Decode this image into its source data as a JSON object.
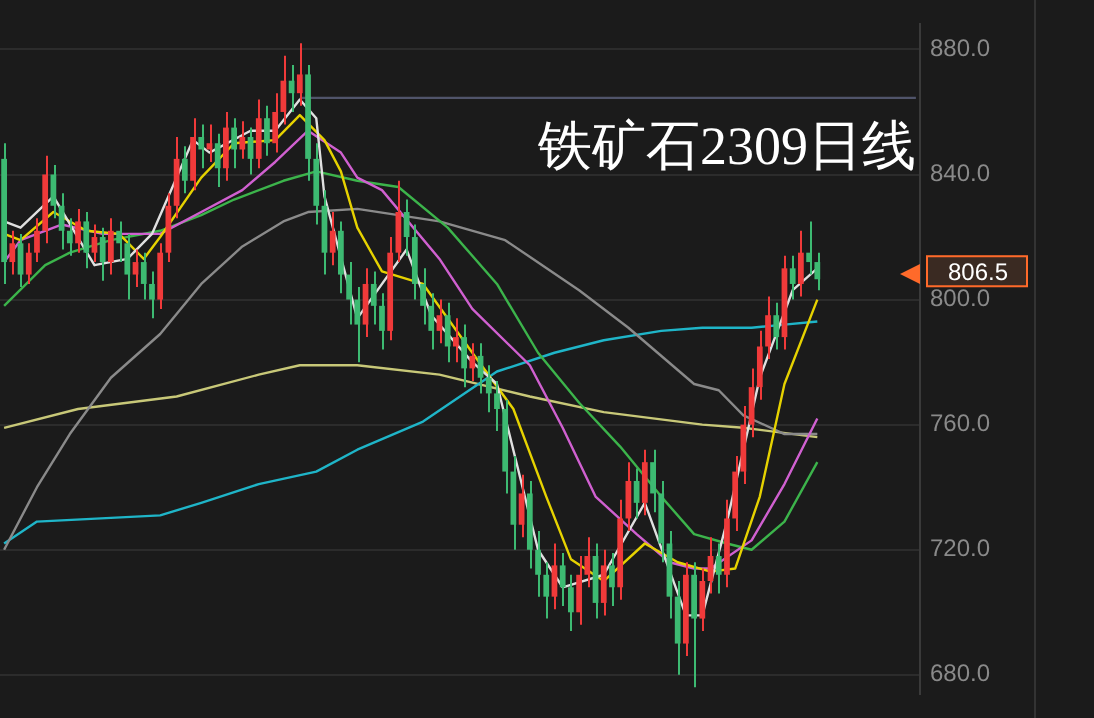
{
  "chart_data": {
    "type": "candlestick",
    "title": "铁矿石2309日线",
    "categories": [
      null,
      null,
      null,
      null,
      null,
      null,
      null,
      null,
      null,
      null,
      null,
      null,
      null,
      null,
      null,
      null,
      null,
      null,
      null,
      null,
      null,
      null,
      null,
      null,
      null,
      null,
      null,
      null,
      null,
      null,
      null,
      null,
      null,
      null,
      null,
      null,
      null,
      null,
      null,
      null,
      null,
      null,
      null,
      null,
      null,
      null,
      null,
      null,
      null,
      null,
      null,
      null,
      null,
      null,
      null,
      null,
      null,
      null,
      null,
      null,
      null,
      null,
      null,
      null,
      null,
      null,
      null,
      null,
      null,
      null,
      null,
      null,
      null,
      null,
      null,
      null,
      null,
      null,
      null,
      null,
      null,
      null,
      null,
      null,
      null,
      null,
      null,
      null,
      null,
      null,
      null,
      null,
      null,
      null,
      null,
      null,
      null,
      null,
      null,
      null,
      null,
      null,
      null,
      null,
      null,
      null,
      null,
      null,
      null,
      null,
      null,
      null
    ],
    "ohlc": [
      [
        845,
        850,
        805,
        812
      ],
      [
        812,
        822,
        808,
        818
      ],
      [
        818,
        821,
        804,
        808
      ],
      [
        808,
        818,
        805,
        815
      ],
      [
        815,
        826,
        812,
        822
      ],
      [
        822,
        846,
        818,
        840
      ],
      [
        840,
        843,
        826,
        830
      ],
      [
        830,
        834,
        816,
        822
      ],
      [
        822,
        826,
        814,
        818
      ],
      [
        818,
        829,
        815,
        825
      ],
      [
        825,
        828,
        810,
        815
      ],
      [
        815,
        824,
        812,
        820
      ],
      [
        820,
        823,
        806,
        812
      ],
      [
        812,
        826,
        808,
        822
      ],
      [
        822,
        825,
        812,
        818
      ],
      [
        818,
        821,
        800,
        808
      ],
      [
        808,
        816,
        804,
        812
      ],
      [
        812,
        815,
        800,
        805
      ],
      [
        805,
        809,
        794,
        800
      ],
      [
        800,
        818,
        797,
        815
      ],
      [
        815,
        834,
        812,
        830
      ],
      [
        830,
        852,
        826,
        845
      ],
      [
        845,
        849,
        834,
        838
      ],
      [
        838,
        858,
        835,
        852
      ],
      [
        852,
        856,
        842,
        848
      ],
      [
        848,
        856,
        844,
        850
      ],
      [
        850,
        853,
        836,
        842
      ],
      [
        842,
        860,
        838,
        855
      ],
      [
        855,
        858,
        842,
        848
      ],
      [
        848,
        857,
        845,
        852
      ],
      [
        852,
        855,
        840,
        845
      ],
      [
        845,
        864,
        842,
        858
      ],
      [
        858,
        862,
        846,
        850
      ],
      [
        850,
        866,
        847,
        860
      ],
      [
        860,
        878,
        856,
        870
      ],
      [
        870,
        875,
        860,
        866
      ],
      [
        866,
        882,
        862,
        872
      ],
      [
        872,
        875,
        838,
        845
      ],
      [
        845,
        850,
        824,
        830
      ],
      [
        830,
        835,
        808,
        815
      ],
      [
        815,
        828,
        811,
        822
      ],
      [
        822,
        825,
        802,
        808
      ],
      [
        808,
        812,
        792,
        800
      ],
      [
        800,
        804,
        780,
        792
      ],
      [
        792,
        810,
        788,
        805
      ],
      [
        805,
        809,
        792,
        798
      ],
      [
        798,
        802,
        784,
        790
      ],
      [
        790,
        820,
        787,
        815
      ],
      [
        815,
        838,
        812,
        828
      ],
      [
        828,
        832,
        814,
        820
      ],
      [
        820,
        824,
        800,
        805
      ],
      [
        805,
        810,
        792,
        798
      ],
      [
        798,
        802,
        784,
        790
      ],
      [
        790,
        800,
        786,
        795
      ],
      [
        795,
        799,
        780,
        785
      ],
      [
        785,
        794,
        780,
        788
      ],
      [
        788,
        792,
        772,
        778
      ],
      [
        778,
        786,
        774,
        782
      ],
      [
        782,
        786,
        770,
        775
      ],
      [
        775,
        779,
        764,
        770
      ],
      [
        770,
        774,
        758,
        765
      ],
      [
        765,
        768,
        738,
        745
      ],
      [
        745,
        750,
        720,
        728
      ],
      [
        728,
        744,
        724,
        738
      ],
      [
        738,
        742,
        714,
        720
      ],
      [
        720,
        726,
        705,
        712
      ],
      [
        712,
        716,
        698,
        705
      ],
      [
        705,
        722,
        701,
        715
      ],
      [
        715,
        719,
        702,
        708
      ],
      [
        708,
        712,
        694,
        700
      ],
      [
        700,
        718,
        696,
        712
      ],
      [
        712,
        724,
        708,
        718
      ],
      [
        718,
        722,
        698,
        703
      ],
      [
        703,
        720,
        699,
        715
      ],
      [
        715,
        719,
        702,
        708
      ],
      [
        708,
        736,
        704,
        730
      ],
      [
        730,
        748,
        726,
        742
      ],
      [
        742,
        746,
        730,
        735
      ],
      [
        735,
        752,
        731,
        748
      ],
      [
        748,
        752,
        732,
        738
      ],
      [
        738,
        742,
        716,
        722
      ],
      [
        722,
        726,
        698,
        705
      ],
      [
        705,
        710,
        680,
        690
      ],
      [
        690,
        716,
        686,
        712
      ],
      [
        712,
        716,
        676,
        698
      ],
      [
        698,
        714,
        694,
        710
      ],
      [
        710,
        724,
        706,
        718
      ],
      [
        718,
        722,
        706,
        712
      ],
      [
        712,
        736,
        708,
        730
      ],
      [
        730,
        750,
        726,
        745
      ],
      [
        745,
        766,
        741,
        760
      ],
      [
        760,
        778,
        756,
        772
      ],
      [
        772,
        790,
        768,
        785
      ],
      [
        785,
        801,
        781,
        795
      ],
      [
        795,
        799,
        784,
        788
      ],
      [
        788,
        814,
        784,
        810
      ],
      [
        810,
        814,
        800,
        805
      ],
      [
        805,
        822,
        801,
        815
      ],
      [
        815,
        825,
        808,
        812
      ],
      [
        812,
        815,
        803,
        806.5
      ],
      null,
      null,
      null,
      null,
      null,
      null,
      null,
      null,
      null,
      null,
      null,
      null
    ],
    "colors": [
      "#3dba72",
      "#f03a3a",
      "#3dba72",
      "#f03a3a",
      "#f03a3a",
      "#f03a3a",
      "#3dba72",
      "#3dba72",
      "#3dba72",
      "#f03a3a",
      "#3dba72",
      "#f03a3a",
      "#3dba72",
      "#f03a3a",
      "#3dba72",
      "#3dba72",
      "#f03a3a",
      "#3dba72",
      "#3dba72",
      "#f03a3a",
      "#f03a3a",
      "#f03a3a",
      "#3dba72",
      "#f03a3a",
      "#3dba72",
      "#f03a3a",
      "#3dba72",
      "#f03a3a",
      "#3dba72",
      "#f03a3a",
      "#3dba72",
      "#f03a3a",
      "#3dba72",
      "#f03a3a",
      "#f03a3a",
      "#3dba72",
      "#f03a3a",
      "#3dba72",
      "#3dba72",
      "#3dba72",
      "#f03a3a",
      "#3dba72",
      "#3dba72",
      "#3dba72",
      "#f03a3a",
      "#3dba72",
      "#3dba72",
      "#f03a3a",
      "#f03a3a",
      "#3dba72",
      "#3dba72",
      "#3dba72",
      "#3dba72",
      "#f03a3a",
      "#3dba72",
      "#f03a3a",
      "#3dba72",
      "#f03a3a",
      "#3dba72",
      "#3dba72",
      "#3dba72",
      "#3dba72",
      "#3dba72",
      "#f03a3a",
      "#3dba72",
      "#3dba72",
      "#3dba72",
      "#f03a3a",
      "#3dba72",
      "#3dba72",
      "#f03a3a",
      "#f03a3a",
      "#3dba72",
      "#f03a3a",
      "#3dba72",
      "#f03a3a",
      "#f03a3a",
      "#3dba72",
      "#f03a3a",
      "#3dba72",
      "#3dba72",
      "#3dba72",
      "#3dba72",
      "#f03a3a",
      "#3dba72",
      "#f03a3a",
      "#f03a3a",
      "#3dba72",
      "#f03a3a",
      "#f03a3a",
      "#f03a3a",
      "#f03a3a",
      "#f03a3a",
      "#f03a3a",
      "#3dba72",
      "#f03a3a",
      "#3dba72",
      "#f03a3a",
      "#3dba72",
      "#3dba72",
      null,
      null,
      null,
      null,
      null,
      null,
      null,
      null,
      null,
      null,
      null,
      null
    ],
    "series": [
      {
        "type": "line",
        "color": "#e0e0e0",
        "values": [
          825,
          null,
          823,
          null,
          null,
          null,
          833,
          null,
          null,
          null,
          null,
          811,
          null,
          null,
          null,
          813,
          null,
          null,
          821,
          null,
          null,
          null,
          null,
          851,
          null,
          847,
          null,
          null,
          null,
          null,
          854,
          null,
          null,
          854,
          null,
          null,
          864,
          null,
          858,
          833,
          null,
          null,
          null,
          794,
          null,
          null,
          null,
          null,
          null,
          816,
          null,
          null,
          795,
          null,
          null,
          null,
          null,
          780,
          null,
          null,
          773,
          null,
          null,
          null,
          null,
          720,
          null,
          null,
          708,
          null,
          null,
          null,
          null,
          712,
          null,
          null,
          null,
          null,
          735,
          null,
          null,
          null,
          null,
          699,
          null,
          699,
          null,
          null,
          729,
          null,
          null,
          null,
          775,
          null,
          null,
          null,
          803,
          null,
          null,
          810,
          null,
          null,
          null,
          null,
          null,
          null,
          null,
          null,
          null,
          null,
          null,
          null
        ]
      },
      {
        "type": "line",
        "color": "#e6d200",
        "values": [
          821,
          null,
          819,
          null,
          null,
          null,
          828,
          null,
          null,
          null,
          822,
          null,
          null,
          null,
          821,
          null,
          null,
          813,
          null,
          820,
          null,
          null,
          null,
          null,
          839,
          null,
          null,
          null,
          850,
          null,
          null,
          null,
          null,
          851,
          null,
          null,
          859,
          null,
          null,
          851,
          null,
          841,
          null,
          823,
          null,
          null,
          809,
          null,
          null,
          null,
          null,
          805,
          null,
          null,
          null,
          null,
          null,
          783,
          null,
          null,
          null,
          null,
          765,
          null,
          null,
          null,
          737,
          null,
          null,
          717,
          null,
          null,
          null,
          710,
          null,
          null,
          null,
          null,
          722,
          null,
          null,
          null,
          716,
          null,
          null,
          null,
          713,
          null,
          null,
          714,
          null,
          null,
          737,
          null,
          null,
          773,
          null,
          null,
          null,
          800,
          null,
          null,
          null,
          null,
          null,
          null,
          null,
          null,
          null,
          null,
          null,
          null
        ]
      },
      {
        "type": "line",
        "color": "#d060d0",
        "values": [
          812,
          null,
          819,
          null,
          null,
          null,
          null,
          824,
          null,
          null,
          null,
          null,
          821,
          null,
          null,
          null,
          null,
          null,
          null,
          821,
          null,
          null,
          null,
          null,
          828,
          null,
          null,
          null,
          null,
          835,
          null,
          null,
          null,
          844,
          null,
          null,
          null,
          854,
          null,
          null,
          null,
          847,
          null,
          839,
          null,
          null,
          835,
          null,
          null,
          null,
          null,
          null,
          null,
          813,
          null,
          null,
          null,
          797,
          null,
          null,
          null,
          null,
          null,
          null,
          779,
          null,
          null,
          null,
          759,
          null,
          null,
          null,
          737,
          null,
          null,
          null,
          null,
          725,
          null,
          null,
          null,
          716,
          null,
          null,
          714,
          null,
          714,
          null,
          null,
          null,
          null,
          723,
          null,
          null,
          null,
          741,
          null,
          null,
          null,
          762,
          null,
          null,
          null,
          null,
          null,
          null,
          null,
          null,
          null,
          null,
          null,
          null
        ]
      },
      {
        "type": "line",
        "color": "#3cb44b",
        "values": [
          798,
          null,
          null,
          null,
          null,
          811,
          null,
          null,
          815,
          null,
          null,
          null,
          null,
          819,
          null,
          null,
          null,
          null,
          null,
          822,
          null,
          null,
          null,
          null,
          827,
          null,
          null,
          null,
          832,
          null,
          null,
          null,
          null,
          null,
          838,
          null,
          null,
          null,
          841,
          null,
          null,
          null,
          null,
          838,
          null,
          null,
          null,
          null,
          836,
          null,
          null,
          null,
          null,
          null,
          823,
          null,
          null,
          null,
          null,
          null,
          805,
          null,
          null,
          null,
          null,
          783,
          null,
          null,
          null,
          null,
          767,
          null,
          null,
          null,
          null,
          753,
          null,
          null,
          null,
          null,
          737,
          null,
          null,
          null,
          725,
          null,
          null,
          null,
          722,
          null,
          null,
          720,
          null,
          null,
          null,
          729,
          null,
          null,
          null,
          748,
          null,
          null,
          null,
          null,
          null,
          null,
          null,
          null,
          null,
          null,
          null,
          null
        ]
      },
      {
        "type": "line",
        "color": "#8a8a8a",
        "values": [
          720,
          null,
          null,
          null,
          740,
          null,
          null,
          null,
          757,
          null,
          null,
          null,
          null,
          775,
          null,
          null,
          null,
          null,
          null,
          789,
          null,
          null,
          null,
          null,
          805,
          null,
          null,
          null,
          null,
          817,
          null,
          null,
          null,
          null,
          825,
          null,
          null,
          828,
          null,
          null,
          null,
          null,
          null,
          829,
          null,
          null,
          null,
          null,
          null,
          null,
          null,
          null,
          null,
          825,
          null,
          null,
          null,
          null,
          null,
          null,
          null,
          819,
          null,
          null,
          null,
          null,
          null,
          null,
          null,
          null,
          803,
          null,
          null,
          null,
          null,
          null,
          791,
          null,
          null,
          null,
          null,
          null,
          null,
          null,
          773,
          null,
          null,
          771,
          null,
          null,
          763,
          null,
          null,
          null,
          null,
          757,
          null,
          null,
          null,
          757,
          null,
          null,
          null,
          null,
          null,
          null,
          null,
          null,
          null,
          null,
          null,
          null
        ]
      },
      {
        "type": "line",
        "color": "#1fb5c8",
        "values": [
          722,
          null,
          null,
          null,
          729,
          null,
          null,
          null,
          null,
          null,
          null,
          null,
          null,
          null,
          null,
          null,
          null,
          null,
          null,
          731,
          null,
          null,
          null,
          null,
          735,
          null,
          null,
          null,
          null,
          null,
          null,
          741,
          null,
          null,
          null,
          null,
          null,
          null,
          745,
          null,
          null,
          null,
          null,
          752,
          null,
          null,
          null,
          null,
          null,
          null,
          null,
          761,
          null,
          null,
          null,
          null,
          null,
          null,
          null,
          null,
          777,
          null,
          null,
          null,
          null,
          null,
          null,
          783,
          null,
          null,
          null,
          null,
          null,
          787,
          null,
          null,
          null,
          null,
          null,
          null,
          790,
          null,
          null,
          null,
          null,
          791,
          null,
          null,
          null,
          null,
          null,
          791,
          null,
          null,
          null,
          792,
          null,
          null,
          null,
          793,
          null,
          null,
          null,
          null,
          null,
          null,
          null,
          null,
          null,
          null,
          null,
          null
        ]
      },
      {
        "type": "line",
        "color": "#c8c878",
        "values": [
          759,
          null,
          null,
          null,
          null,
          null,
          null,
          null,
          null,
          765,
          null,
          null,
          null,
          null,
          null,
          null,
          null,
          null,
          null,
          null,
          null,
          769,
          null,
          null,
          null,
          null,
          null,
          null,
          null,
          null,
          null,
          776,
          null,
          null,
          null,
          null,
          779,
          null,
          null,
          null,
          null,
          null,
          null,
          779,
          null,
          null,
          null,
          null,
          null,
          null,
          null,
          null,
          null,
          776,
          null,
          null,
          null,
          null,
          null,
          null,
          null,
          null,
          null,
          null,
          769,
          null,
          null,
          null,
          null,
          null,
          null,
          null,
          null,
          764,
          null,
          null,
          null,
          null,
          null,
          null,
          null,
          null,
          null,
          null,
          null,
          760,
          null,
          null,
          null,
          null,
          759,
          null,
          null,
          null,
          null,
          null,
          null,
          null,
          null,
          756,
          null,
          null,
          null,
          null,
          null,
          null,
          null,
          null,
          null,
          null,
          null,
          null
        ]
      },
      {
        "type": "line",
        "color": "#50546a",
        "values": [
          null,
          null,
          null,
          null,
          null,
          null,
          null,
          null,
          null,
          null,
          null,
          null,
          null,
          null,
          null,
          null,
          null,
          null,
          null,
          null,
          null,
          null,
          null,
          null,
          null,
          null,
          null,
          null,
          null,
          null,
          null,
          null,
          null,
          null,
          null,
          null,
          864.5,
          null,
          null,
          null,
          null,
          null,
          null,
          null,
          null,
          null,
          null,
          null,
          null,
          null,
          null,
          null,
          null,
          null,
          null,
          null,
          null,
          null,
          null,
          null,
          null,
          null,
          null,
          null,
          null,
          null,
          null,
          null,
          null,
          null,
          null,
          null,
          null,
          null,
          null,
          null,
          null,
          null,
          null,
          null,
          null,
          null,
          null,
          null,
          null,
          null,
          null,
          null,
          null,
          null,
          null,
          null,
          null,
          null,
          null,
          null,
          null,
          null,
          null,
          null,
          null,
          null,
          null,
          null,
          null,
          null,
          null,
          null,
          null,
          null,
          null,
          864.5
        ]
      }
    ],
    "annotations": [
      "806.5"
    ],
    "ylim": [
      674,
      888
    ],
    "yticks": [
      {
        "value": 680,
        "label": "680.0"
      },
      {
        "value": 720,
        "label": "720.0"
      },
      {
        "value": 760,
        "label": "760.0"
      },
      {
        "value": 800,
        "label": "800.0"
      },
      {
        "value": 840,
        "label": "840.0"
      },
      {
        "value": 880,
        "label": "880.0"
      }
    ],
    "grid": "y",
    "legend": false,
    "tick_labels": "y"
  }
}
